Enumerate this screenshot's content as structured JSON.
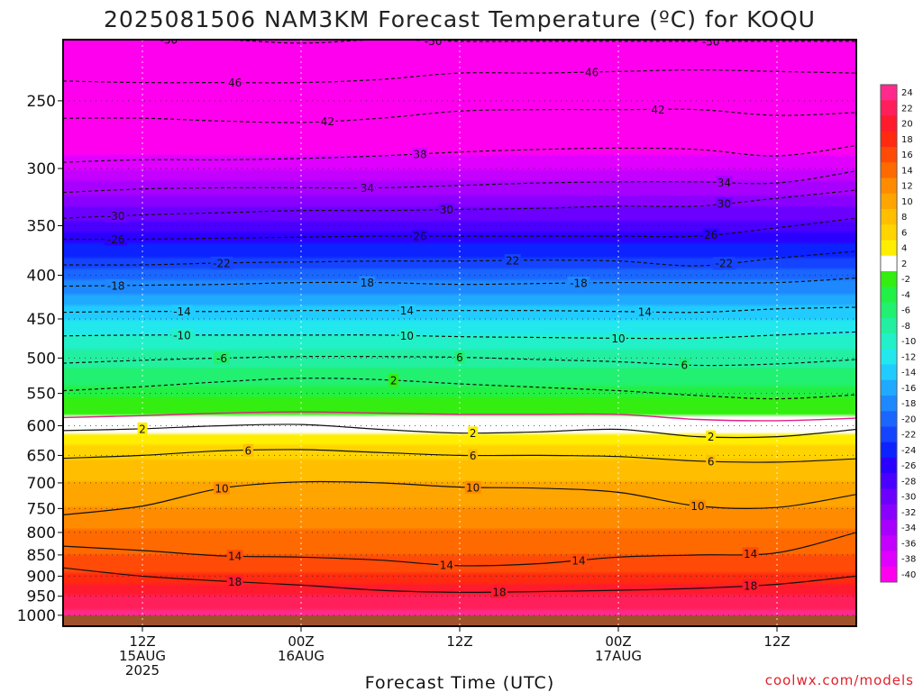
{
  "chart_data": {
    "type": "heatmap",
    "title": "2025081506 NAM3KM Forecast Temperature (ºC) for KOQU",
    "xlabel": "Forecast Time (UTC)",
    "ylabel": "",
    "credit": "coolwx.com/models",
    "y_axis": {
      "scale": "log-pressure",
      "reversed": true,
      "ylim": [
        1030,
        212
      ],
      "ticks": [
        250,
        300,
        350,
        400,
        450,
        500,
        550,
        600,
        650,
        700,
        750,
        800,
        850,
        900,
        950,
        1000
      ]
    },
    "x_axis": {
      "xlim_hours": [
        0,
        60
      ],
      "ticks": [
        {
          "hour": 6,
          "lines": [
            "12Z",
            "15AUG",
            "2025"
          ]
        },
        {
          "hour": 18,
          "lines": [
            "00Z",
            "16AUG"
          ]
        },
        {
          "hour": 30,
          "lines": [
            "12Z"
          ]
        },
        {
          "hour": 42,
          "lines": [
            "00Z",
            "17AUG"
          ]
        },
        {
          "hour": 54,
          "lines": [
            "12Z"
          ]
        }
      ]
    },
    "grid": true,
    "colorbar": {
      "placement": "right",
      "levels": [
        24,
        22,
        20,
        18,
        16,
        14,
        12,
        10,
        8,
        6,
        4,
        2,
        -2,
        -4,
        -6,
        -8,
        -10,
        -12,
        -14,
        -16,
        -18,
        -20,
        -22,
        -24,
        -26,
        -28,
        -30,
        -32,
        -34,
        -36,
        -38,
        -40
      ],
      "colors": [
        "#ff2a8c",
        "#ff1f5a",
        "#ff1a2e",
        "#ff2a10",
        "#ff4a08",
        "#ff6a00",
        "#ff8c00",
        "#ffa500",
        "#ffbf00",
        "#ffd400",
        "#ffee00",
        "#ffffff",
        "#33ee10",
        "#22f044",
        "#22f070",
        "#22f0a0",
        "#22f0c8",
        "#22e8ee",
        "#20ccff",
        "#20aaff",
        "#1e88ff",
        "#1a66ff",
        "#1444ff",
        "#0c22ff",
        "#2a00ff",
        "#4a00ff",
        "#6c00ff",
        "#8a00ff",
        "#a800ff",
        "#c400ff",
        "#e000ff",
        "#ff00ee"
      ]
    },
    "temperature_profile": [
      {
        "p": 1000,
        "t": 23
      },
      {
        "p": 950,
        "t": 20
      },
      {
        "p": 900,
        "t": 16.5
      },
      {
        "p": 850,
        "t": 14
      },
      {
        "p": 800,
        "t": 12.5
      },
      {
        "p": 750,
        "t": 10
      },
      {
        "p": 700,
        "t": 8
      },
      {
        "p": 650,
        "t": 5.5
      },
      {
        "p": 600,
        "t": 1
      },
      {
        "p": 560,
        "t": -1.5
      },
      {
        "p": 550,
        "t": -3
      },
      {
        "p": 500,
        "t": -7
      },
      {
        "p": 450,
        "t": -12
      },
      {
        "p": 400,
        "t": -19
      },
      {
        "p": 350,
        "t": -27
      },
      {
        "p": 300,
        "t": -36
      },
      {
        "p": 250,
        "t": -45
      },
      {
        "p": 212,
        "t": -53
      }
    ],
    "contours": [
      {
        "value": -50,
        "style": "dashed",
        "p": [
          212,
          212,
          212,
          214,
          212,
          213,
          213,
          213,
          213,
          213,
          213
        ],
        "labels": [
          {
            "hour": 8,
            "text": "-50"
          },
          {
            "hour": 28,
            "text": "-50"
          },
          {
            "hour": 49,
            "text": "-50"
          }
        ]
      },
      {
        "value": -46,
        "style": "dashed",
        "p": [
          237,
          238,
          238,
          238,
          236,
          232,
          232,
          231,
          230,
          231,
          232
        ],
        "labels": [
          {
            "hour": 13,
            "text": "46"
          },
          {
            "hour": 40,
            "text": "46"
          }
        ]
      },
      {
        "value": -42,
        "style": "dashed",
        "p": [
          262,
          262,
          264,
          265,
          262,
          257,
          256,
          256,
          256,
          260,
          258
        ],
        "labels": [
          {
            "hour": 20,
            "text": "42"
          },
          {
            "hour": 45,
            "text": "42"
          }
        ]
      },
      {
        "value": -38,
        "style": "dashed",
        "p": [
          295,
          293,
          293,
          292,
          290,
          287,
          285,
          284,
          285,
          290,
          282
        ],
        "labels": [
          {
            "hour": 27,
            "text": "38"
          }
        ]
      },
      {
        "value": -34,
        "style": "dashed",
        "p": [
          320,
          317,
          316,
          316,
          316,
          314,
          312,
          311,
          311,
          312,
          302
        ],
        "labels": [
          {
            "hour": 23,
            "text": "34"
          },
          {
            "hour": 50,
            "text": "34"
          }
        ]
      },
      {
        "value": -30,
        "style": "dashed",
        "p": [
          343,
          340,
          338,
          336,
          336,
          335,
          334,
          332,
          332,
          325,
          318
        ],
        "labels": [
          {
            "hour": 4,
            "text": "-30"
          },
          {
            "hour": 29,
            "text": "30"
          },
          {
            "hour": 50,
            "text": "30"
          }
        ]
      },
      {
        "value": -26,
        "style": "dashed",
        "p": [
          363,
          363,
          362,
          361,
          360,
          360,
          360,
          360,
          360,
          352,
          343
        ],
        "labels": [
          {
            "hour": 4,
            "text": "-26"
          },
          {
            "hour": 27,
            "text": "26"
          },
          {
            "hour": 49,
            "text": "26"
          }
        ]
      },
      {
        "value": -22,
        "style": "dashed",
        "p": [
          389,
          389,
          387,
          386,
          385,
          385,
          384,
          385,
          390,
          382,
          375
        ],
        "labels": [
          {
            "hour": 12,
            "text": "-22"
          },
          {
            "hour": 34,
            "text": "22"
          },
          {
            "hour": 50,
            "text": "-22"
          }
        ]
      },
      {
        "value": -18,
        "style": "dashed",
        "p": [
          412,
          411,
          410,
          408,
          408,
          410,
          409,
          408,
          408,
          408,
          403
        ],
        "labels": [
          {
            "hour": 4,
            "text": "-18"
          },
          {
            "hour": 23,
            "text": "18"
          },
          {
            "hour": 39,
            "text": "-18"
          }
        ]
      },
      {
        "value": -14,
        "style": "dashed",
        "p": [
          442,
          441,
          441,
          440,
          440,
          440,
          440,
          441,
          442,
          438,
          436
        ],
        "labels": [
          {
            "hour": 9,
            "text": "-14"
          },
          {
            "hour": 26,
            "text": "14"
          },
          {
            "hour": 44,
            "text": "14"
          }
        ]
      },
      {
        "value": -10,
        "style": "dashed",
        "p": [
          471,
          470,
          470,
          470,
          470,
          472,
          473,
          474,
          474,
          470,
          466
        ],
        "labels": [
          {
            "hour": 9,
            "text": "-10"
          },
          {
            "hour": 26,
            "text": "10"
          },
          {
            "hour": 42,
            "text": "10"
          }
        ]
      },
      {
        "value": -6,
        "style": "dashed",
        "p": [
          507,
          503,
          500,
          498,
          498,
          499,
          502,
          505,
          510,
          508,
          502
        ],
        "labels": [
          {
            "hour": 12,
            "text": "-6"
          },
          {
            "hour": 30,
            "text": "6"
          },
          {
            "hour": 47,
            "text": "6"
          }
        ]
      },
      {
        "value": -2,
        "style": "dashed",
        "p": [
          546,
          540,
          533,
          528,
          530,
          536,
          541,
          546,
          553,
          558,
          552
        ],
        "labels": [
          {
            "hour": 25,
            "text": "2"
          }
        ]
      },
      {
        "value": 0,
        "style": "magenta",
        "p": [
          587,
          584,
          580,
          578,
          580,
          582,
          582,
          582,
          590,
          592,
          588
        ],
        "labels": []
      },
      {
        "value": 2,
        "style": "solid",
        "p": [
          608,
          605,
          600,
          598,
          606,
          612,
          610,
          606,
          618,
          618,
          606
        ],
        "labels": [
          {
            "hour": 6,
            "text": "2"
          },
          {
            "hour": 31,
            "text": "2"
          },
          {
            "hour": 49,
            "text": "2"
          }
        ]
      },
      {
        "value": 6,
        "style": "solid",
        "p": [
          655,
          650,
          642,
          640,
          645,
          650,
          650,
          652,
          660,
          662,
          656
        ],
        "labels": [
          {
            "hour": 14,
            "text": "6"
          },
          {
            "hour": 31,
            "text": "6"
          },
          {
            "hour": 49,
            "text": "6"
          }
        ]
      },
      {
        "value": 10,
        "style": "solid",
        "p": [
          763,
          745,
          710,
          698,
          700,
          708,
          710,
          718,
          745,
          748,
          722
        ],
        "labels": [
          {
            "hour": 12,
            "text": "10"
          },
          {
            "hour": 31,
            "text": "10"
          },
          {
            "hour": 48,
            "text": "10"
          }
        ]
      },
      {
        "value": 14,
        "style": "solid",
        "p": [
          830,
          840,
          852,
          855,
          862,
          875,
          870,
          855,
          850,
          845,
          800
        ],
        "labels": [
          {
            "hour": 13,
            "text": "14"
          },
          {
            "hour": 29,
            "text": "14"
          },
          {
            "hour": 39,
            "text": "14"
          },
          {
            "hour": 52,
            "text": "14"
          }
        ]
      },
      {
        "value": 18,
        "style": "solid",
        "p": [
          880,
          900,
          912,
          922,
          935,
          940,
          938,
          935,
          930,
          920,
          900
        ],
        "labels": [
          {
            "hour": 13,
            "text": "18"
          },
          {
            "hour": 33,
            "text": "18"
          },
          {
            "hour": 52,
            "text": "18"
          }
        ]
      }
    ]
  }
}
